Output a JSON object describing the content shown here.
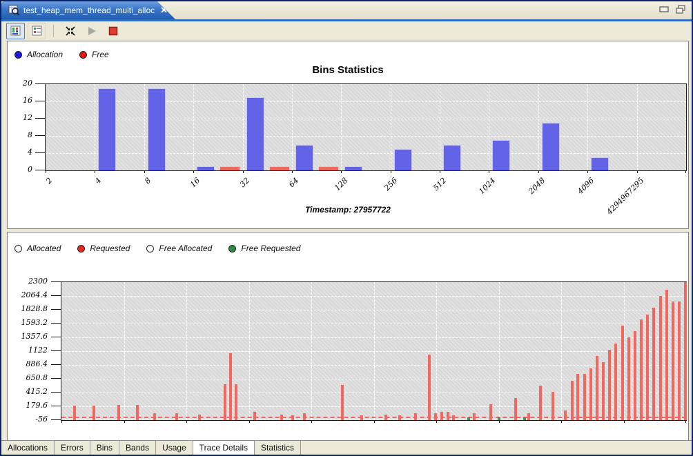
{
  "window": {
    "tab_title": "test_heap_mem_thread_multi_alloc",
    "close_label": "✕"
  },
  "toolbar": {
    "icons": [
      "detail-view",
      "list-view",
      "collapse",
      "play-disabled",
      "stop"
    ]
  },
  "bins_panel": {
    "legend": [
      {
        "label": "Allocation",
        "color": "#1a1ae0"
      },
      {
        "label": "Free",
        "color": "#e51414"
      }
    ],
    "title": "Bins Statistics",
    "timestamp": "Timestamp: 27957722"
  },
  "trace_panel": {
    "legend": [
      {
        "label": "Allocated",
        "color": "#ffffff"
      },
      {
        "label": "Requested",
        "color": "#e82a1f"
      },
      {
        "label": "Free Allocated",
        "color": "#ffffff"
      },
      {
        "label": "Free Requested",
        "color": "#2e8b42"
      }
    ]
  },
  "chart_data": [
    {
      "type": "bar",
      "title": "Bins Statistics",
      "categories": [
        "2",
        "4",
        "8",
        "16",
        "32",
        "64",
        "128",
        "256",
        "512",
        "1024",
        "2048",
        "4096",
        "4294967295"
      ],
      "series": [
        {
          "name": "Allocation",
          "color": "#6363e8",
          "values": [
            0,
            19,
            19,
            1,
            17,
            6,
            1,
            5,
            6,
            7,
            11,
            3,
            0
          ]
        },
        {
          "name": "Free",
          "color": "#f0685f",
          "values": [
            0,
            0,
            0,
            1,
            1,
            1,
            0,
            0,
            0,
            0,
            0,
            0,
            0
          ]
        }
      ],
      "ylim": [
        0,
        20
      ],
      "yticks": [
        20,
        16,
        12,
        8,
        4,
        0
      ],
      "grid": true,
      "legend_position": "top-left",
      "annotation": "Timestamp: 27957722"
    },
    {
      "type": "bar",
      "title": "",
      "ylim": [
        -56,
        2300
      ],
      "yticks": [
        "2300",
        "2064.4",
        "1828.8",
        "1593.2",
        "1357.6",
        "1122",
        "886.4",
        "650.8",
        "415.2",
        "179.6",
        "-56"
      ],
      "grid": true,
      "x_axis": "event index (unlabeled, pixel positions 0-905)",
      "baseline": {
        "series": "Allocated",
        "value": 0,
        "style": "dashed",
        "color": "#ef6a60"
      },
      "series": [
        {
          "name": "Requested",
          "color": "#f0685f",
          "points": [
            [
              19,
              190
            ],
            [
              47,
              190
            ],
            [
              83,
              205
            ],
            [
              110,
              205
            ],
            [
              135,
              60
            ],
            [
              167,
              60
            ],
            [
              200,
              40
            ],
            [
              237,
              555
            ],
            [
              245,
              1085
            ],
            [
              253,
              555
            ],
            [
              280,
              90
            ],
            [
              319,
              40
            ],
            [
              335,
              30
            ],
            [
              352,
              60
            ],
            [
              407,
              545
            ],
            [
              435,
              30
            ],
            [
              470,
              40
            ],
            [
              490,
              30
            ],
            [
              513,
              60
            ],
            [
              533,
              1065
            ],
            [
              542,
              65
            ],
            [
              551,
              90
            ],
            [
              560,
              90
            ],
            [
              568,
              30
            ],
            [
              598,
              60
            ],
            [
              622,
              215
            ],
            [
              658,
              320
            ],
            [
              677,
              60
            ],
            [
              694,
              530
            ],
            [
              712,
              425
            ],
            [
              730,
              110
            ],
            [
              740,
              615
            ],
            [
              748,
              735
            ],
            [
              758,
              735
            ],
            [
              767,
              825
            ],
            [
              776,
              1040
            ],
            [
              785,
              935
            ],
            [
              794,
              1145
            ],
            [
              803,
              1250
            ],
            [
              813,
              1560
            ],
            [
              822,
              1355
            ],
            [
              831,
              1465
            ],
            [
              840,
              1665
            ],
            [
              849,
              1745
            ],
            [
              858,
              1865
            ],
            [
              868,
              2065
            ],
            [
              877,
              2170
            ],
            [
              886,
              1970
            ],
            [
              895,
              1970
            ],
            [
              904,
              2300
            ]
          ]
        },
        {
          "name": "Free Requested",
          "color": "#3d9155",
          "points": [
            [
              590,
              -10
            ],
            [
              634,
              -10
            ],
            [
              671,
              -10
            ]
          ]
        }
      ]
    }
  ],
  "bottom_tabs": {
    "items": [
      "Allocations",
      "Errors",
      "Bins",
      "Bands",
      "Usage",
      "Trace Details",
      "Statistics"
    ],
    "selected": "Trace Details"
  }
}
